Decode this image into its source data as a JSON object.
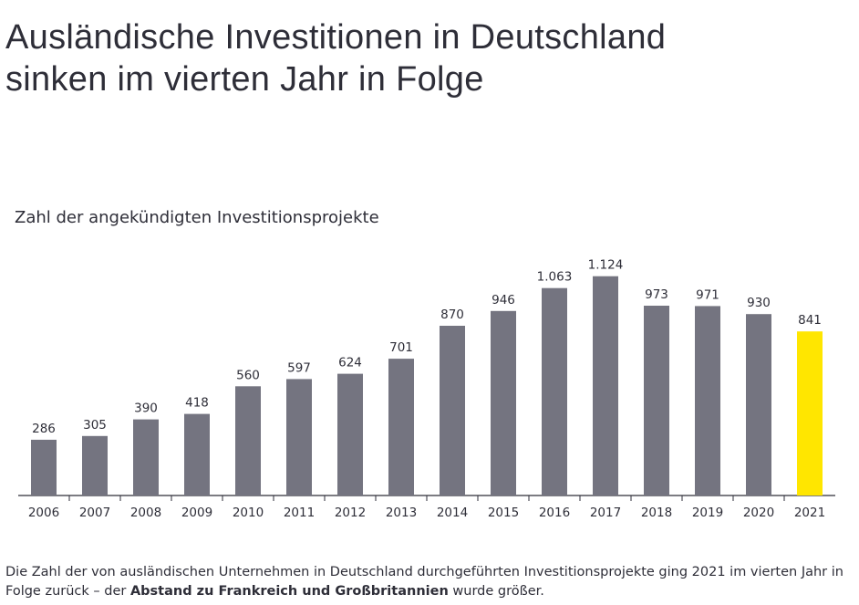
{
  "headline": {
    "line1": "Ausländische Investitionen in Deutschland",
    "line2": "sinken im vierten Jahr in Folge"
  },
  "caption": {
    "part1": "Die Zahl der von ausländischen Unternehmen in Deutschland durchgeführten Investitionsprojekte ging 2021 im vierten Jahr in Folge zurück – der ",
    "bold": "Abstand zu Frankreich und Großbritannien",
    "part2": " wurde größer."
  },
  "colors": {
    "bar": "#747480",
    "highlight": "#ffe600",
    "axis": "#2e2e38",
    "text": "#2e2e38"
  },
  "chart_data": {
    "type": "bar",
    "title": "Zahl der angekündigten Investitionsprojekte",
    "categories": [
      "2006",
      "2007",
      "2008",
      "2009",
      "2010",
      "2011",
      "2012",
      "2013",
      "2014",
      "2015",
      "2016",
      "2017",
      "2018",
      "2019",
      "2020",
      "2021"
    ],
    "values": [
      286,
      305,
      390,
      418,
      560,
      597,
      624,
      701,
      870,
      946,
      1063,
      1124,
      973,
      971,
      930,
      841
    ],
    "value_labels": [
      "286",
      "305",
      "390",
      "418",
      "560",
      "597",
      "624",
      "701",
      "870",
      "946",
      "1.063",
      "1.124",
      "973",
      "971",
      "930",
      "841"
    ],
    "highlight_category": "2021",
    "xlabel": "",
    "ylabel": "",
    "ylim": [
      0,
      1160
    ],
    "grid": false,
    "legend": "none"
  }
}
